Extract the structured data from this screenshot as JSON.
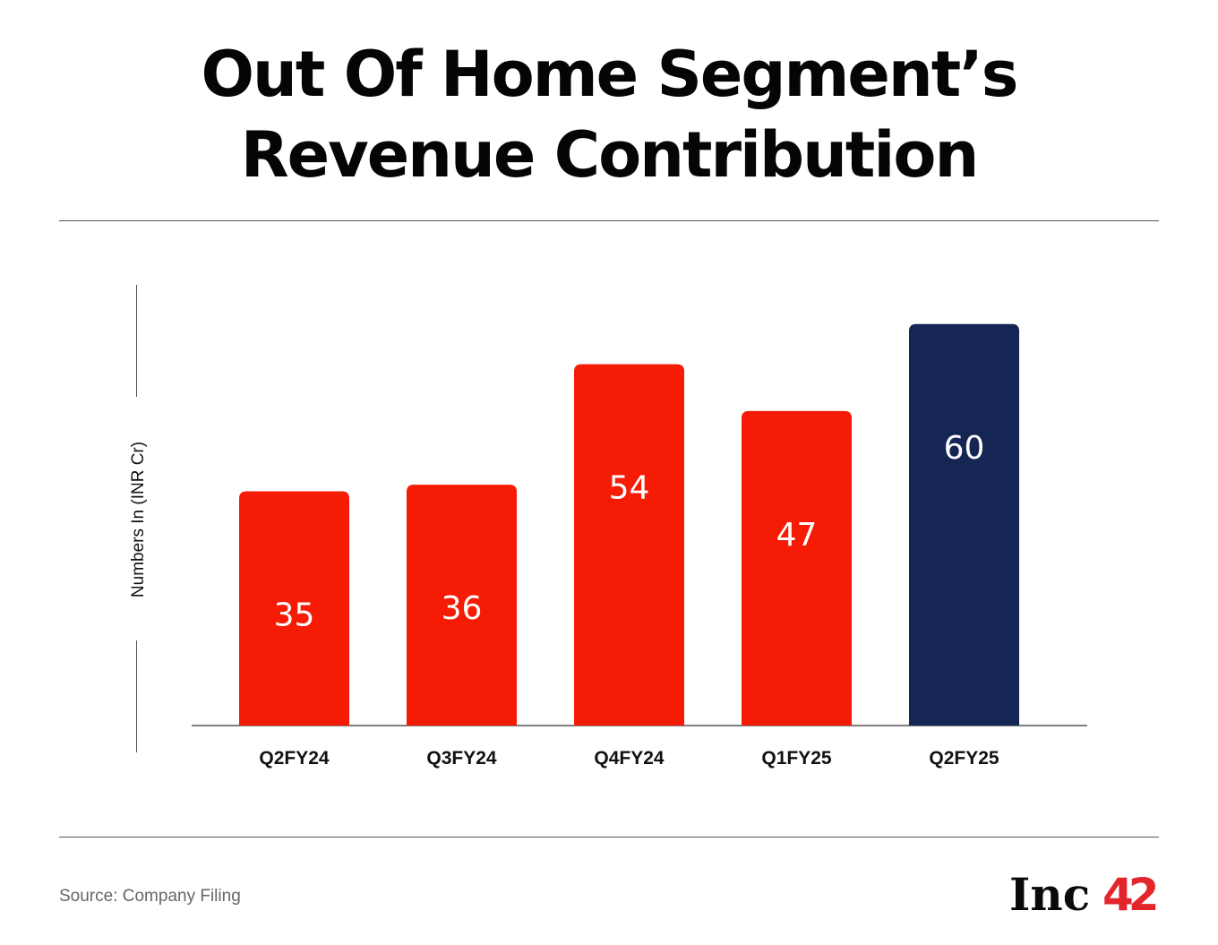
{
  "chart_data": {
    "type": "bar",
    "title": "Out Of Home Segment’s Revenue Contribution",
    "title_lines": [
      "Out Of Home Segment’s",
      "Revenue Contribution"
    ],
    "xlabel": "",
    "ylabel": "Numbers In (INR Cr)",
    "categories": [
      "Q2FY24",
      "Q3FY24",
      "Q4FY24",
      "Q1FY25",
      "Q2FY25"
    ],
    "values": [
      35,
      36,
      54,
      47,
      60
    ],
    "data_labels": [
      "35",
      "36",
      "54",
      "47",
      "60"
    ],
    "bar_colors": [
      "#f51b05",
      "#f51b05",
      "#f51b05",
      "#f51b05",
      "#152655"
    ],
    "ylim": [
      0,
      65
    ],
    "grid": false,
    "legend": "none"
  },
  "footer": {
    "source": "Source: Company Filing",
    "logo_text": "Inc",
    "logo_number": "42"
  },
  "colors": {
    "accent_red": "#f51b05",
    "highlight_navy": "#152655",
    "text": "#050505",
    "muted": "#666666"
  }
}
